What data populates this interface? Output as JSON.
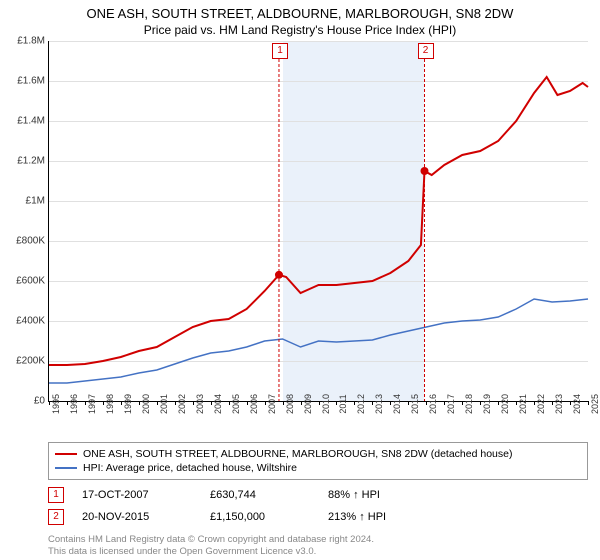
{
  "title_line1": "ONE ASH, SOUTH STREET, ALDBOURNE, MARLBOROUGH, SN8 2DW",
  "title_line2": "Price paid vs. HM Land Registry's House Price Index (HPI)",
  "chart": {
    "type": "line",
    "background_color": "#ffffff",
    "grid_color": "#e0e0e0",
    "axis_color": "#000000",
    "shaded_band_color": "#eaf1fa",
    "shaded_band_xstart": 2008.0,
    "shaded_band_xend": 2015.9,
    "xlim": [
      1995,
      2025
    ],
    "ylim": [
      0,
      1800000
    ],
    "ytick_step": 200000,
    "ylabels": [
      "£0",
      "£200K",
      "£400K",
      "£600K",
      "£800K",
      "£1M",
      "£1.2M",
      "£1.4M",
      "£1.6M",
      "£1.8M"
    ],
    "xlabels": [
      "1995",
      "1996",
      "1997",
      "1998",
      "1999",
      "2000",
      "2001",
      "2002",
      "2003",
      "2004",
      "2005",
      "2006",
      "2007",
      "2008",
      "2009",
      "2010",
      "2011",
      "2012",
      "2013",
      "2014",
      "2015",
      "2016",
      "2017",
      "2018",
      "2019",
      "2020",
      "2021",
      "2022",
      "2023",
      "2024",
      "2025"
    ],
    "label_fontsize": 10,
    "series": [
      {
        "name": "property",
        "color": "#d00000",
        "width": 2,
        "points": [
          [
            1995,
            180000
          ],
          [
            1996,
            180000
          ],
          [
            1997,
            185000
          ],
          [
            1998,
            200000
          ],
          [
            1999,
            220000
          ],
          [
            2000,
            250000
          ],
          [
            2001,
            270000
          ],
          [
            2002,
            320000
          ],
          [
            2003,
            370000
          ],
          [
            2004,
            400000
          ],
          [
            2005,
            410000
          ],
          [
            2006,
            460000
          ],
          [
            2007,
            550000
          ],
          [
            2007.8,
            630744
          ],
          [
            2008.2,
            620000
          ],
          [
            2009,
            540000
          ],
          [
            2009.5,
            560000
          ],
          [
            2010,
            580000
          ],
          [
            2011,
            580000
          ],
          [
            2012,
            590000
          ],
          [
            2013,
            600000
          ],
          [
            2014,
            640000
          ],
          [
            2015,
            700000
          ],
          [
            2015.7,
            780000
          ],
          [
            2015.9,
            1150000
          ],
          [
            2016.3,
            1130000
          ],
          [
            2017,
            1180000
          ],
          [
            2018,
            1230000
          ],
          [
            2019,
            1250000
          ],
          [
            2020,
            1300000
          ],
          [
            2021,
            1400000
          ],
          [
            2022,
            1540000
          ],
          [
            2022.7,
            1620000
          ],
          [
            2023.3,
            1530000
          ],
          [
            2024,
            1550000
          ],
          [
            2024.7,
            1590000
          ],
          [
            2025,
            1570000
          ]
        ],
        "dots": [
          {
            "x": 2007.8,
            "y": 630744
          },
          {
            "x": 2015.9,
            "y": 1150000
          }
        ]
      },
      {
        "name": "hpi",
        "color": "#4472c4",
        "width": 1.5,
        "points": [
          [
            1995,
            90000
          ],
          [
            1996,
            90000
          ],
          [
            1997,
            100000
          ],
          [
            1998,
            110000
          ],
          [
            1999,
            120000
          ],
          [
            2000,
            140000
          ],
          [
            2001,
            155000
          ],
          [
            2002,
            185000
          ],
          [
            2003,
            215000
          ],
          [
            2004,
            240000
          ],
          [
            2005,
            250000
          ],
          [
            2006,
            270000
          ],
          [
            2007,
            300000
          ],
          [
            2008,
            310000
          ],
          [
            2009,
            270000
          ],
          [
            2010,
            300000
          ],
          [
            2011,
            295000
          ],
          [
            2012,
            300000
          ],
          [
            2013,
            305000
          ],
          [
            2014,
            330000
          ],
          [
            2015,
            350000
          ],
          [
            2016,
            370000
          ],
          [
            2017,
            390000
          ],
          [
            2018,
            400000
          ],
          [
            2019,
            405000
          ],
          [
            2020,
            420000
          ],
          [
            2021,
            460000
          ],
          [
            2022,
            510000
          ],
          [
            2023,
            495000
          ],
          [
            2024,
            500000
          ],
          [
            2025,
            510000
          ]
        ]
      }
    ],
    "markers": [
      {
        "n": "1",
        "x": 2007.8,
        "y_top_offset": 0
      },
      {
        "n": "2",
        "x": 2015.9,
        "y_top_offset": 0
      }
    ]
  },
  "legend": {
    "items": [
      {
        "color": "#d00000",
        "label": "ONE ASH, SOUTH STREET, ALDBOURNE, MARLBOROUGH, SN8 2DW (detached house)"
      },
      {
        "color": "#4472c4",
        "label": "HPI: Average price, detached house, Wiltshire"
      }
    ]
  },
  "sales": [
    {
      "n": "1",
      "date": "17-OCT-2007",
      "price": "£630,744",
      "hpi": "88% ↑ HPI"
    },
    {
      "n": "2",
      "date": "20-NOV-2015",
      "price": "£1,150,000",
      "hpi": "213% ↑ HPI"
    }
  ],
  "footer_line1": "Contains HM Land Registry data © Crown copyright and database right 2024.",
  "footer_line2": "This data is licensed under the Open Government Licence v3.0."
}
